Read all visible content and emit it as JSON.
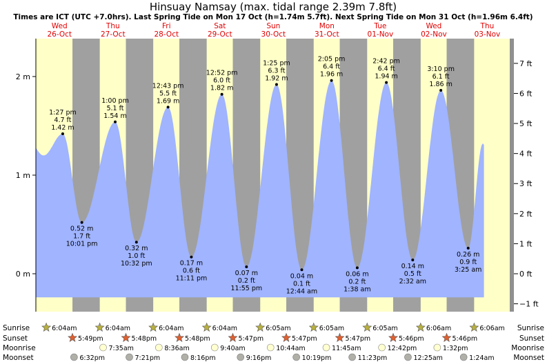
{
  "title": "Hinsuay Namsay (max. tidal range 2.39m 7.8ft)",
  "subtitle": "Times are ICT (UTC +7.0hrs). Last Spring Tide on Mon 17 Oct (h=1.74m 5.7ft). Next Spring Tide on Mon 31 Oct (h=1.96m 6.4ft)",
  "colors": {
    "day_bg": "#ffffc8",
    "night_bg": "#a0a0a0",
    "tide_fill": "#a0b4ff",
    "sun_star": "#b8b040",
    "set_star": "#e06030",
    "moon_rise": "#ffffd0",
    "moon_set": "#b0b0a8"
  },
  "chart_data": {
    "type": "area",
    "days": [
      {
        "name": "Wed",
        "date": "26-Oct"
      },
      {
        "name": "Thu",
        "date": "27-Oct"
      },
      {
        "name": "Fri",
        "date": "28-Oct"
      },
      {
        "name": "Sat",
        "date": "29-Oct"
      },
      {
        "name": "Sun",
        "date": "30-Oct"
      },
      {
        "name": "Mon",
        "date": "31-Oct"
      },
      {
        "name": "Tue",
        "date": "01-Nov"
      },
      {
        "name": "Wed",
        "date": "02-Nov"
      },
      {
        "name": "Thu",
        "date": "03-Nov"
      }
    ],
    "left_axis": {
      "ticks": [
        0,
        1,
        2
      ],
      "labels": [
        "0 m",
        "1 m",
        "2 m"
      ],
      "range_m": [
        -0.25,
        2.37
      ]
    },
    "right_axis": {
      "ticks": [
        -1,
        0,
        1,
        2,
        3,
        4,
        5,
        6,
        7
      ],
      "labels": [
        "−1 ft",
        "0 ft",
        "1 ft",
        "2 ft",
        "3 ft",
        "4 ft",
        "5 ft",
        "6 ft",
        "7 ft"
      ]
    },
    "tides": [
      {
        "type": "high",
        "time": "1:27 pm",
        "ft": "4.7 ft",
        "m": "1.42 m",
        "hour": 13.45,
        "value": 1.42
      },
      {
        "type": "low",
        "time": "10:01 pm",
        "ft": "1.7 ft",
        "m": "0.52 m",
        "hour": 22.02,
        "value": 0.52
      },
      {
        "type": "high",
        "time": "1:00 pm",
        "ft": "5.1 ft",
        "m": "1.54 m",
        "hour": 37.0,
        "value": 1.54
      },
      {
        "type": "low",
        "time": "10:32 pm",
        "ft": "1.0 ft",
        "m": "0.32 m",
        "hour": 46.53,
        "value": 0.32
      },
      {
        "type": "high",
        "time": "12:43 pm",
        "ft": "5.5 ft",
        "m": "1.69 m",
        "hour": 60.72,
        "value": 1.69
      },
      {
        "type": "low",
        "time": "11:11 pm",
        "ft": "0.6 ft",
        "m": "0.17 m",
        "hour": 71.18,
        "value": 0.17
      },
      {
        "type": "high",
        "time": "12:52 pm",
        "ft": "6.0 ft",
        "m": "1.82 m",
        "hour": 84.87,
        "value": 1.82
      },
      {
        "type": "low",
        "time": "11:55 pm",
        "ft": "0.2 ft",
        "m": "0.07 m",
        "hour": 95.92,
        "value": 0.07
      },
      {
        "type": "high",
        "time": "1:25 pm",
        "ft": "6.3 ft",
        "m": "1.92 m",
        "hour": 109.42,
        "value": 1.92
      },
      {
        "type": "low",
        "time": "12:44 am",
        "ft": "0.1 ft",
        "m": "0.04 m",
        "hour": 120.73,
        "value": 0.04
      },
      {
        "type": "high",
        "time": "2:05 pm",
        "ft": "6.4 ft",
        "m": "1.96 m",
        "hour": 134.08,
        "value": 1.96
      },
      {
        "type": "low",
        "time": "1:38 am",
        "ft": "0.2 ft",
        "m": "0.06 m",
        "hour": 145.63,
        "value": 0.06
      },
      {
        "type": "high",
        "time": "2:42 pm",
        "ft": "6.4 ft",
        "m": "1.94 m",
        "hour": 158.7,
        "value": 1.94
      },
      {
        "type": "low",
        "time": "2:32 am",
        "ft": "0.5 ft",
        "m": "0.14 m",
        "hour": 170.53,
        "value": 0.14
      },
      {
        "type": "high",
        "time": "3:10 pm",
        "ft": "6.1 ft",
        "m": "1.86 m",
        "hour": 183.17,
        "value": 1.86
      },
      {
        "type": "low",
        "time": "3:25 am",
        "ft": "0.9 ft",
        "m": "0.26 m",
        "hour": 195.42,
        "value": 0.26
      }
    ],
    "sunrise": [
      "6:04am",
      "6:04am",
      "6:04am",
      "6:04am",
      "6:05am",
      "6:05am",
      "6:05am",
      "6:06am",
      "6:06am"
    ],
    "sunset": [
      "5:49pm",
      "5:48pm",
      "5:48pm",
      "5:47pm",
      "5:47pm",
      "5:47pm",
      "5:46pm",
      "5:46pm"
    ],
    "moonrise": [
      "7:35am",
      "8:36am",
      "9:40am",
      "10:44am",
      "11:45am",
      "12:42pm",
      "1:32pm"
    ],
    "moonset": [
      "6:32pm",
      "7:21pm",
      "8:16pm",
      "9:16pm",
      "10:19pm",
      "11:23pm",
      "12:25am",
      "1:24am"
    ]
  },
  "rows": {
    "sunrise": "Sunrise",
    "sunset": "Sunset",
    "moonrise": "Moonrise",
    "moonset": "Moonset"
  }
}
